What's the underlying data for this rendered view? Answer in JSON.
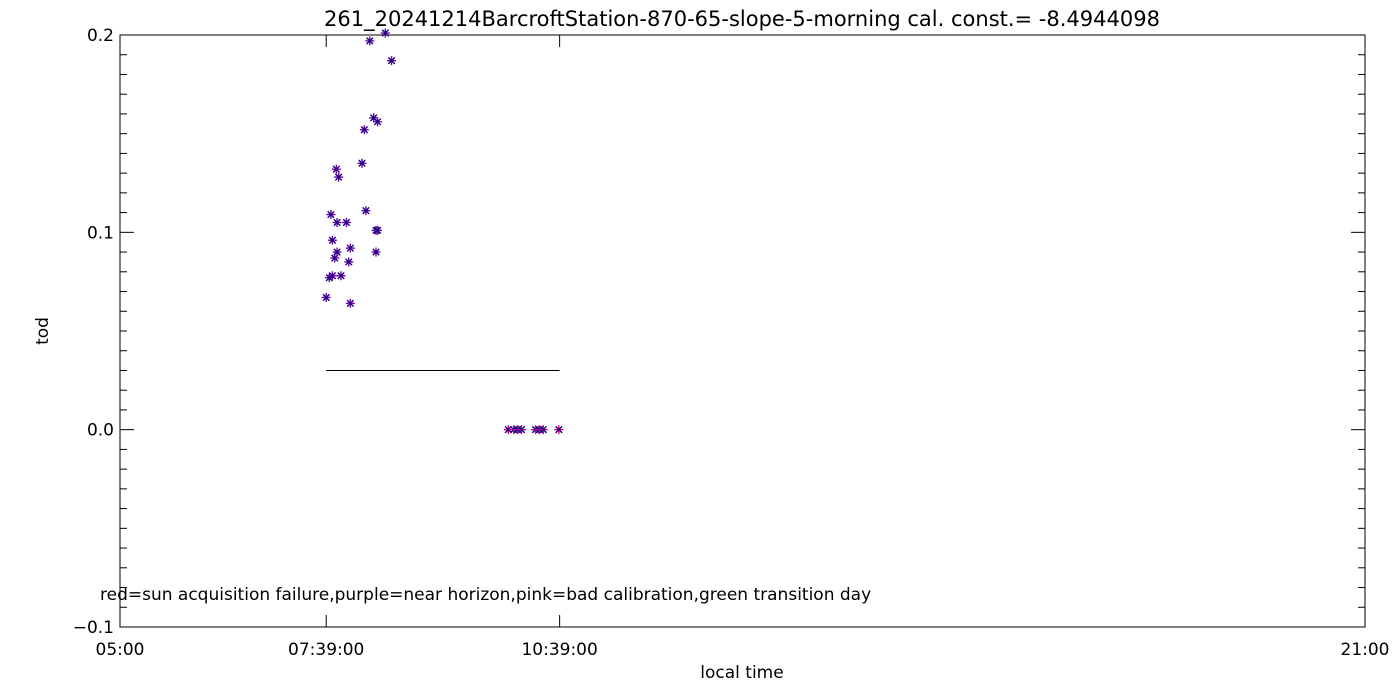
{
  "chart_data": {
    "type": "scatter",
    "title": "261_20241214BarcroftStation-870-65-slope-5-morning cal. const.= -8.4944098",
    "xlabel": "local time",
    "ylabel": "tod",
    "x_ticks": [
      {
        "value": 5.0,
        "label": "05:00"
      },
      {
        "value": 7.65,
        "label": "07:39:00"
      },
      {
        "value": 10.65,
        "label": "10:39:00"
      },
      {
        "value": 21.0,
        "label": "21:00"
      }
    ],
    "y_ticks": [
      {
        "value": -0.1,
        "label": "-0.1"
      },
      {
        "value": 0.0,
        "label": "0.0"
      },
      {
        "value": 0.1,
        "label": "0.1"
      },
      {
        "value": 0.2,
        "label": "0.2"
      }
    ],
    "xlim": [
      5.0,
      21.0
    ],
    "ylim": [
      -0.1,
      0.2
    ],
    "legend_text": "red=sun acquisition failure,purple=near horizon,pink=bad calibration,green transition day",
    "colors": {
      "purple": "#7a00a8",
      "pink": "#e0007a",
      "navy": "#1a0080",
      "axis": "#000000"
    },
    "reference_line": {
      "x_start": 7.65,
      "x_end": 10.65,
      "y": 0.03
    },
    "series": [
      {
        "color": "purple",
        "points": [
          [
            7.65,
            0.067
          ],
          [
            7.69,
            0.077
          ],
          [
            7.73,
            0.078
          ],
          [
            7.84,
            0.078
          ],
          [
            7.71,
            0.109
          ],
          [
            7.73,
            0.096
          ],
          [
            7.76,
            0.087
          ],
          [
            7.79,
            0.09
          ],
          [
            7.78,
            0.132
          ],
          [
            7.81,
            0.128
          ],
          [
            7.79,
            0.105
          ],
          [
            7.91,
            0.105
          ],
          [
            7.94,
            0.085
          ],
          [
            7.96,
            0.092
          ],
          [
            7.96,
            0.064
          ],
          [
            8.11,
            0.135
          ],
          [
            8.14,
            0.152
          ],
          [
            8.16,
            0.111
          ],
          [
            8.21,
            0.197
          ],
          [
            8.26,
            0.158
          ],
          [
            8.29,
            0.101
          ],
          [
            8.31,
            0.101
          ],
          [
            8.31,
            0.156
          ],
          [
            8.29,
            0.09
          ],
          [
            8.41,
            0.201
          ],
          [
            8.49,
            0.187
          ]
        ]
      },
      {
        "color": "pink",
        "points": [
          [
            9.99,
            0.0
          ],
          [
            10.06,
            0.0
          ],
          [
            10.11,
            0.0
          ],
          [
            10.16,
            0.0
          ],
          [
            10.34,
            0.0
          ],
          [
            10.39,
            0.0
          ],
          [
            10.44,
            0.0
          ],
          [
            10.64,
            0.0
          ]
        ]
      }
    ]
  }
}
